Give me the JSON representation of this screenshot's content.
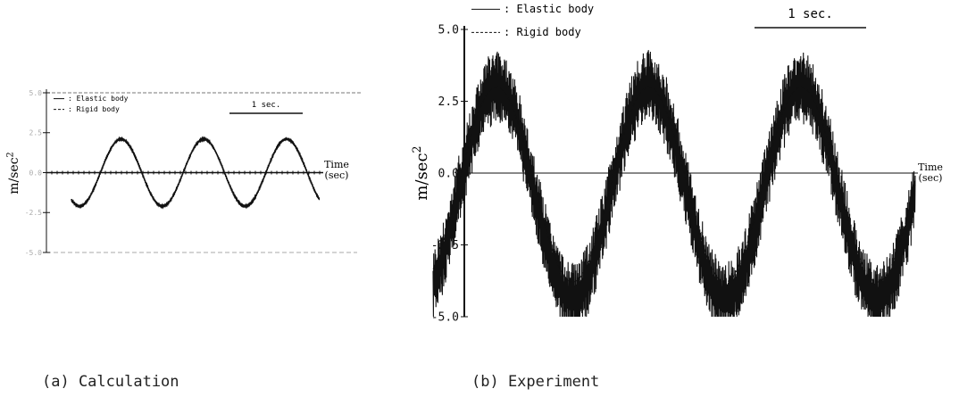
{
  "chart_data": [
    {
      "type": "line",
      "caption": "(a)  Calculation",
      "ylabel": "m/sec",
      "ylabel_sup": "2",
      "xlabel_line1": "Time",
      "xlabel_line2": "(sec)",
      "ylim": [
        -5.0,
        5.0
      ],
      "y_ticks": [
        5.0,
        2.5,
        0.0,
        -2.5,
        -5.0
      ],
      "y_tick_labels": [
        "5.0",
        "2.5",
        "0.0",
        "-2.5",
        "-5.0"
      ],
      "scale_bar_label": "1 sec.",
      "scale_bar_seconds": 1,
      "x_range_sec": [
        0,
        3.0
      ],
      "legend": [
        {
          "symbol": "—",
          "label": ": Elastic body"
        },
        {
          "symbol": "---",
          "label": ": Rigid body"
        }
      ],
      "series": [
        {
          "name": "Elastic body",
          "style": "solid",
          "amplitude": 2.1,
          "period_sec": 1.0,
          "phase_sec": 0.35,
          "noise": 0.05
        },
        {
          "name": "Rigid body",
          "style": "dashed",
          "constant": 0.0
        }
      ]
    },
    {
      "type": "line",
      "caption": "(b)  Experiment",
      "ylabel": "m/sec",
      "ylabel_sup": "2",
      "xlabel_line1": "Time",
      "xlabel_line2": "(sec)",
      "ylim": [
        -5.0,
        5.0
      ],
      "y_ticks": [
        5.0,
        2.5,
        0.0,
        -2.5,
        -5.0
      ],
      "y_tick_labels": [
        "5.0",
        "2.5",
        "0.0",
        "-2.5",
        "-5.0"
      ],
      "scale_bar_label": "1 sec.",
      "scale_bar_seconds": 1,
      "x_range_sec": [
        0,
        2.85
      ],
      "legend": [
        {
          "symbol": "—",
          "label": ": Elastic body"
        },
        {
          "symbol": "---",
          "label": ": Rigid body"
        }
      ],
      "series": [
        {
          "name": "Elastic body",
          "style": "solid",
          "offset": -0.7,
          "amplitude": 3.7,
          "period_sec": 0.9,
          "phase_sec": 0.15,
          "noise": 1.3
        },
        {
          "name": "Rigid body",
          "style": "dashed",
          "offset": -0.4,
          "amplitude": 3.4,
          "period_sec": 0.9,
          "phase_sec": 0.15
        }
      ]
    }
  ]
}
